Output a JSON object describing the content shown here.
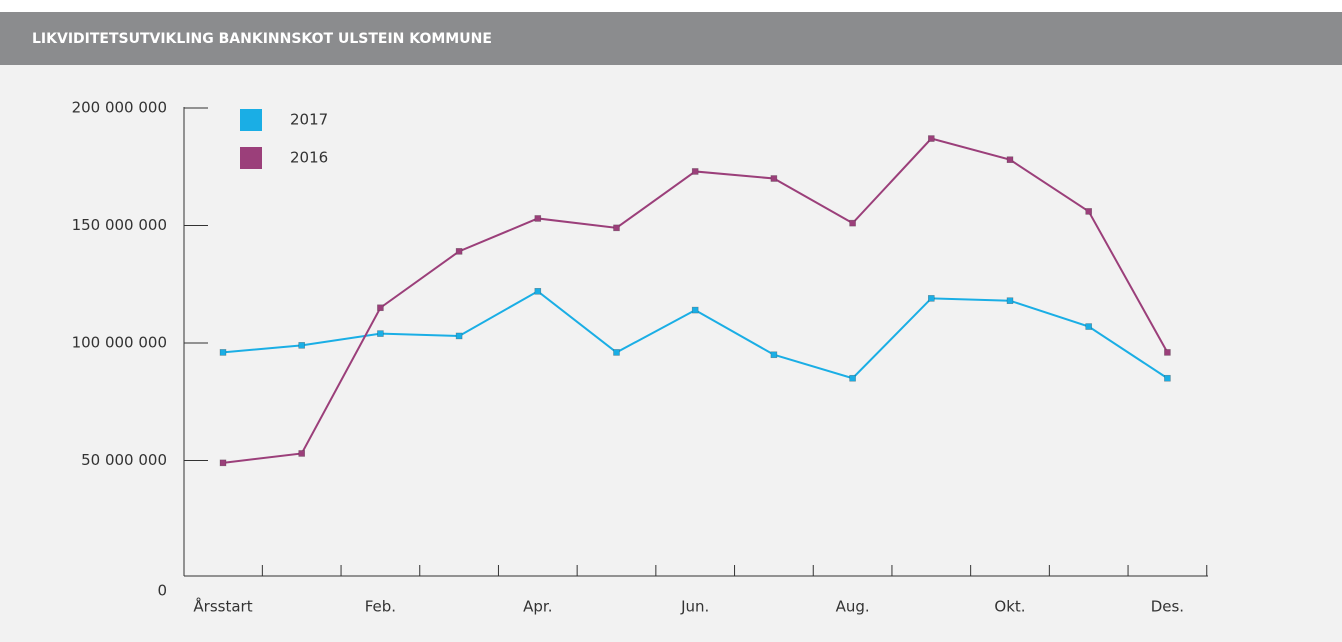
{
  "chart_data": {
    "type": "line",
    "title": "LIKVIDITETSUTVIKLING BANKINNSKOT ULSTEIN KOMMUNE",
    "categories": [
      "Årsstart",
      null,
      "Feb.",
      null,
      "Apr.",
      null,
      "Jun.",
      null,
      "Aug.",
      null,
      "Okt.",
      null,
      "Des."
    ],
    "series": [
      {
        "name": "2017",
        "color": "#1aaee5",
        "values": [
          96000000,
          99000000,
          104000000,
          103000000,
          122000000,
          96000000,
          114000000,
          95000000,
          85000000,
          119000000,
          118000000,
          107000000,
          85000000
        ]
      },
      {
        "name": "2016",
        "color": "#9b3f7a",
        "values": [
          49000000,
          53000000,
          115000000,
          139000000,
          153000000,
          149000000,
          173000000,
          170000000,
          151000000,
          187000000,
          178000000,
          156000000,
          96000000
        ]
      }
    ],
    "ylim": [
      0,
      200000000
    ],
    "yticks": [
      0,
      {
        "value": 50000000,
        "label": "50 000 000"
      },
      {
        "value": 100000000,
        "label": "100 000 000"
      },
      {
        "value": 150000000,
        "label": "150 000 000"
      },
      {
        "value": 200000000,
        "label": "200 000 000"
      }
    ],
    "legend": "top-left",
    "grid": false
  }
}
